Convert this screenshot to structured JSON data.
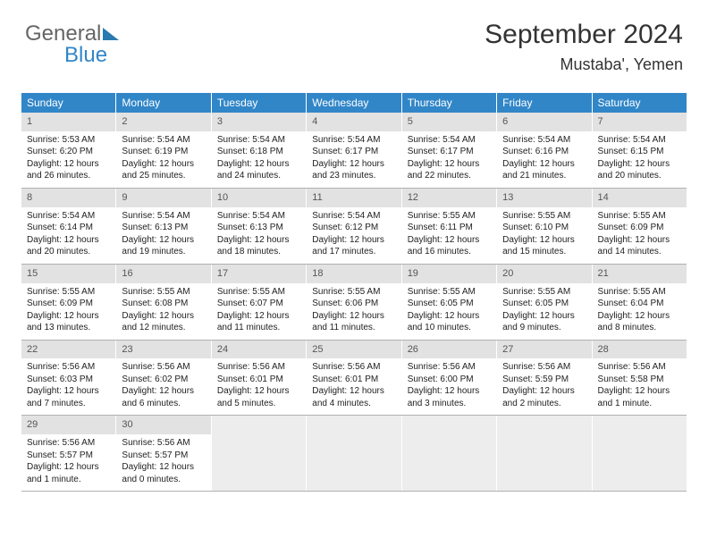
{
  "logo": {
    "line1": "General",
    "line2": "Blue"
  },
  "header": {
    "month": "September 2024",
    "location": "Mustaba', Yemen"
  },
  "colors": {
    "headerBlue": "#3186c8",
    "dayNumBg": "#e2e2e2",
    "borderGray": "#b0b0b0",
    "logoTri": "#2a7ab0",
    "logoGray": "#666666",
    "emptyBg": "#ededed"
  },
  "daysOfWeek": [
    "Sunday",
    "Monday",
    "Tuesday",
    "Wednesday",
    "Thursday",
    "Friday",
    "Saturday"
  ],
  "weeks": [
    [
      {
        "n": "1",
        "sr": "5:53 AM",
        "ss": "6:20 PM",
        "dl": "12 hours and 26 minutes."
      },
      {
        "n": "2",
        "sr": "5:54 AM",
        "ss": "6:19 PM",
        "dl": "12 hours and 25 minutes."
      },
      {
        "n": "3",
        "sr": "5:54 AM",
        "ss": "6:18 PM",
        "dl": "12 hours and 24 minutes."
      },
      {
        "n": "4",
        "sr": "5:54 AM",
        "ss": "6:17 PM",
        "dl": "12 hours and 23 minutes."
      },
      {
        "n": "5",
        "sr": "5:54 AM",
        "ss": "6:17 PM",
        "dl": "12 hours and 22 minutes."
      },
      {
        "n": "6",
        "sr": "5:54 AM",
        "ss": "6:16 PM",
        "dl": "12 hours and 21 minutes."
      },
      {
        "n": "7",
        "sr": "5:54 AM",
        "ss": "6:15 PM",
        "dl": "12 hours and 20 minutes."
      }
    ],
    [
      {
        "n": "8",
        "sr": "5:54 AM",
        "ss": "6:14 PM",
        "dl": "12 hours and 20 minutes."
      },
      {
        "n": "9",
        "sr": "5:54 AM",
        "ss": "6:13 PM",
        "dl": "12 hours and 19 minutes."
      },
      {
        "n": "10",
        "sr": "5:54 AM",
        "ss": "6:13 PM",
        "dl": "12 hours and 18 minutes."
      },
      {
        "n": "11",
        "sr": "5:54 AM",
        "ss": "6:12 PM",
        "dl": "12 hours and 17 minutes."
      },
      {
        "n": "12",
        "sr": "5:55 AM",
        "ss": "6:11 PM",
        "dl": "12 hours and 16 minutes."
      },
      {
        "n": "13",
        "sr": "5:55 AM",
        "ss": "6:10 PM",
        "dl": "12 hours and 15 minutes."
      },
      {
        "n": "14",
        "sr": "5:55 AM",
        "ss": "6:09 PM",
        "dl": "12 hours and 14 minutes."
      }
    ],
    [
      {
        "n": "15",
        "sr": "5:55 AM",
        "ss": "6:09 PM",
        "dl": "12 hours and 13 minutes."
      },
      {
        "n": "16",
        "sr": "5:55 AM",
        "ss": "6:08 PM",
        "dl": "12 hours and 12 minutes."
      },
      {
        "n": "17",
        "sr": "5:55 AM",
        "ss": "6:07 PM",
        "dl": "12 hours and 11 minutes."
      },
      {
        "n": "18",
        "sr": "5:55 AM",
        "ss": "6:06 PM",
        "dl": "12 hours and 11 minutes."
      },
      {
        "n": "19",
        "sr": "5:55 AM",
        "ss": "6:05 PM",
        "dl": "12 hours and 10 minutes."
      },
      {
        "n": "20",
        "sr": "5:55 AM",
        "ss": "6:05 PM",
        "dl": "12 hours and 9 minutes."
      },
      {
        "n": "21",
        "sr": "5:55 AM",
        "ss": "6:04 PM",
        "dl": "12 hours and 8 minutes."
      }
    ],
    [
      {
        "n": "22",
        "sr": "5:56 AM",
        "ss": "6:03 PM",
        "dl": "12 hours and 7 minutes."
      },
      {
        "n": "23",
        "sr": "5:56 AM",
        "ss": "6:02 PM",
        "dl": "12 hours and 6 minutes."
      },
      {
        "n": "24",
        "sr": "5:56 AM",
        "ss": "6:01 PM",
        "dl": "12 hours and 5 minutes."
      },
      {
        "n": "25",
        "sr": "5:56 AM",
        "ss": "6:01 PM",
        "dl": "12 hours and 4 minutes."
      },
      {
        "n": "26",
        "sr": "5:56 AM",
        "ss": "6:00 PM",
        "dl": "12 hours and 3 minutes."
      },
      {
        "n": "27",
        "sr": "5:56 AM",
        "ss": "5:59 PM",
        "dl": "12 hours and 2 minutes."
      },
      {
        "n": "28",
        "sr": "5:56 AM",
        "ss": "5:58 PM",
        "dl": "12 hours and 1 minute."
      }
    ],
    [
      {
        "n": "29",
        "sr": "5:56 AM",
        "ss": "5:57 PM",
        "dl": "12 hours and 1 minute."
      },
      {
        "n": "30",
        "sr": "5:56 AM",
        "ss": "5:57 PM",
        "dl": "12 hours and 0 minutes."
      },
      null,
      null,
      null,
      null,
      null
    ]
  ],
  "labels": {
    "sunrise": "Sunrise: ",
    "sunset": "Sunset: ",
    "daylight": "Daylight: "
  }
}
